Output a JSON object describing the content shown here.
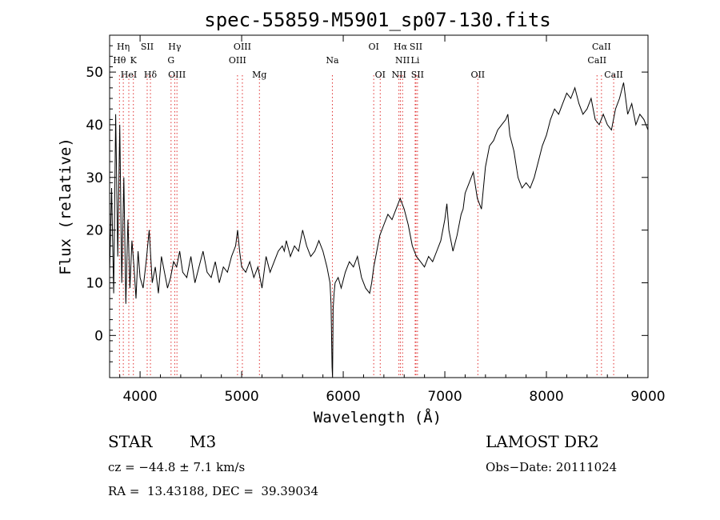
{
  "chart_data": {
    "type": "line",
    "title": "spec-55859-M5901_sp07-130.fits",
    "xlabel": "Wavelength (Å)",
    "ylabel": "Flux (relative)",
    "xlim": [
      3700,
      9000
    ],
    "ylim": [
      -8,
      57
    ],
    "grid": false,
    "xticks": [
      4000,
      5000,
      6000,
      7000,
      8000,
      9000
    ],
    "yticks": [
      0,
      10,
      20,
      30,
      40,
      50
    ],
    "series": [
      {
        "x": [
          3700,
          3720,
          3740,
          3760,
          3780,
          3800,
          3820,
          3840,
          3860,
          3880,
          3900,
          3920,
          3940,
          3960,
          3980,
          4000,
          4030,
          4060,
          4090,
          4120,
          4150,
          4180,
          4210,
          4240,
          4270,
          4300,
          4330,
          4360,
          4390,
          4420,
          4460,
          4500,
          4540,
          4580,
          4620,
          4660,
          4700,
          4740,
          4780,
          4820,
          4860,
          4900,
          4940,
          4960,
          4980,
          5000,
          5040,
          5080,
          5120,
          5160,
          5200,
          5240,
          5280,
          5320,
          5360,
          5400,
          5420,
          5440,
          5480,
          5520,
          5560,
          5580,
          5600,
          5640,
          5680,
          5720,
          5760,
          5800,
          5840,
          5870,
          5880,
          5890,
          5895,
          5900,
          5910,
          5920,
          5950,
          5980,
          6020,
          6060,
          6100,
          6140,
          6180,
          6220,
          6260,
          6280,
          6300,
          6320,
          6340,
          6360,
          6400,
          6440,
          6480,
          6520,
          6560,
          6580,
          6600,
          6640,
          6680,
          6720,
          6760,
          6800,
          6840,
          6880,
          6920,
          6960,
          7000,
          7020,
          7040,
          7080,
          7120,
          7160,
          7180,
          7200,
          7240,
          7280,
          7320,
          7360,
          7400,
          7440,
          7480,
          7520,
          7560,
          7600,
          7620,
          7640,
          7680,
          7720,
          7760,
          7800,
          7840,
          7880,
          7920,
          7960,
          8000,
          8040,
          8080,
          8120,
          8160,
          8200,
          8240,
          8280,
          8320,
          8360,
          8400,
          8440,
          8480,
          8520,
          8560,
          8600,
          8640,
          8680,
          8720,
          8760,
          8800,
          8840,
          8880,
          8920,
          8960,
          9000
        ],
        "y": [
          12,
          28,
          8,
          42,
          15,
          40,
          10,
          30,
          6,
          22,
          9,
          18,
          13,
          7,
          16,
          11,
          9,
          14,
          20,
          10,
          13,
          8,
          15,
          12,
          9,
          11,
          14,
          13,
          16,
          12,
          11,
          15,
          10,
          13,
          16,
          12,
          11,
          14,
          10,
          13,
          12,
          15,
          17,
          20,
          16,
          13,
          12,
          14,
          11,
          13,
          9,
          15,
          12,
          14,
          16,
          17,
          16,
          18,
          15,
          17,
          16,
          18,
          20,
          17,
          15,
          16,
          18,
          16,
          13,
          10,
          6,
          -6,
          -8,
          5,
          8,
          10,
          11,
          9,
          12,
          14,
          13,
          15,
          11,
          9,
          8,
          10,
          13,
          15,
          17,
          19,
          21,
          23,
          22,
          24,
          26,
          25,
          24,
          21,
          17,
          15,
          14,
          13,
          15,
          14,
          16,
          18,
          22,
          25,
          20,
          16,
          19,
          23,
          24,
          27,
          29,
          31,
          26,
          24,
          32,
          36,
          37,
          39,
          40,
          41,
          42,
          38,
          35,
          30,
          28,
          29,
          28,
          30,
          33,
          36,
          38,
          41,
          43,
          42,
          44,
          46,
          45,
          47,
          44,
          42,
          43,
          45,
          41,
          40,
          42,
          40,
          39,
          43,
          45,
          48,
          42,
          44,
          40,
          42,
          41,
          39
        ]
      }
    ],
    "line_markers": [
      {
        "name": "Hη",
        "x": 3835,
        "row": 0
      },
      {
        "name": "Hθ",
        "x": 3797,
        "row": 1
      },
      {
        "name": "K",
        "x": 3934,
        "row": 1
      },
      {
        "name": "HeI",
        "x": 3889,
        "row": 2
      },
      {
        "name": "SII",
        "x": 4070,
        "row": 0
      },
      {
        "name": "Hδ",
        "x": 4102,
        "row": 2
      },
      {
        "name": "Hγ",
        "x": 4341,
        "row": 0
      },
      {
        "name": "G",
        "x": 4305,
        "row": 1
      },
      {
        "name": "OIII",
        "x": 4363,
        "row": 2
      },
      {
        "name": "OIII",
        "x": 5007,
        "row": 0
      },
      {
        "name": "OIII",
        "x": 4959,
        "row": 1
      },
      {
        "name": "Mg",
        "x": 5175,
        "row": 2
      },
      {
        "name": "Na",
        "x": 5893,
        "row": 1
      },
      {
        "name": "OI",
        "x": 6300,
        "row": 0
      },
      {
        "name": "OI",
        "x": 6364,
        "row": 2
      },
      {
        "name": "Hα",
        "x": 6563,
        "row": 0
      },
      {
        "name": "SII",
        "x": 6716,
        "row": 0
      },
      {
        "name": "NII",
        "x": 6584,
        "row": 1
      },
      {
        "name": "Li",
        "x": 6708,
        "row": 1
      },
      {
        "name": "NII",
        "x": 6548,
        "row": 2
      },
      {
        "name": "SII",
        "x": 6731,
        "row": 2
      },
      {
        "name": "OII",
        "x": 7325,
        "row": 2
      },
      {
        "name": "CaII",
        "x": 8542,
        "row": 0
      },
      {
        "name": "CaII",
        "x": 8498,
        "row": 1
      },
      {
        "name": "CaII",
        "x": 8662,
        "row": 2
      }
    ]
  },
  "info": {
    "object_class": "STAR",
    "subclass": "M3",
    "survey": "LAMOST DR2",
    "redshift": "cz = −44.8 ± 7.1 km/s",
    "obs_date": "Obs−Date: 20111024",
    "coords": "RA =  13.43188, DEC =  39.39034"
  },
  "colors": {
    "line": "#000000",
    "marker": "#e03030",
    "axes": "#000000"
  }
}
